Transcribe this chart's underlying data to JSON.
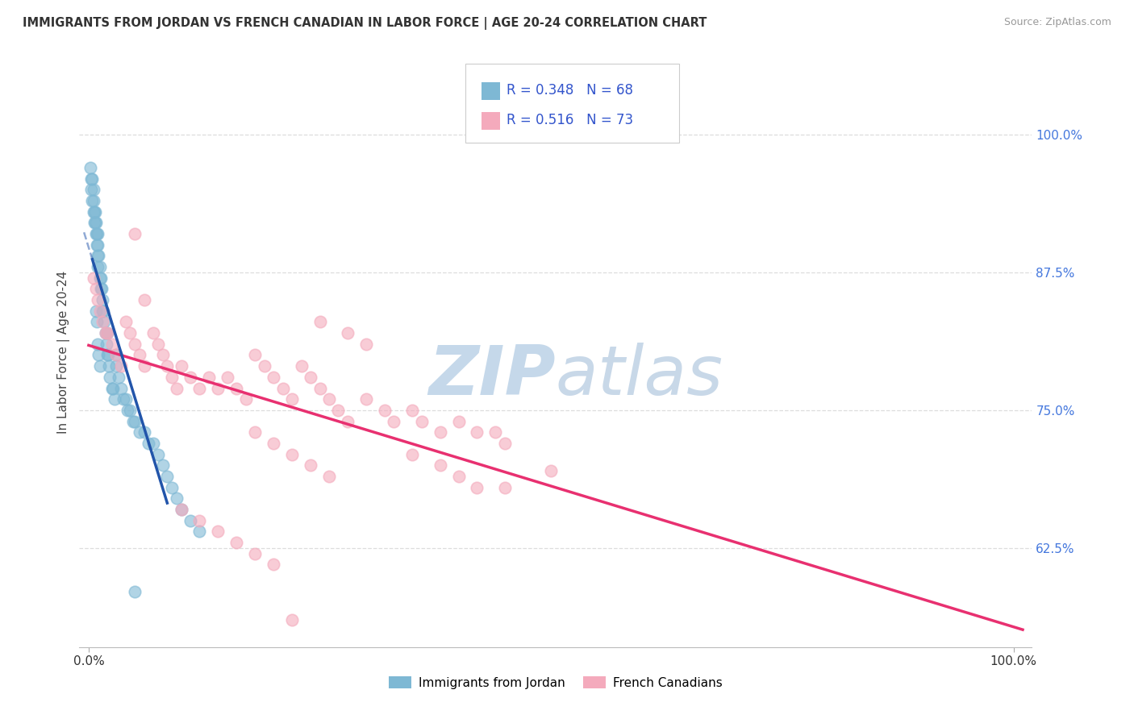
{
  "title": "IMMIGRANTS FROM JORDAN VS FRENCH CANADIAN IN LABOR FORCE | AGE 20-24 CORRELATION CHART",
  "source": "Source: ZipAtlas.com",
  "ylabel": "In Labor Force | Age 20-24",
  "xlim": [
    -0.01,
    1.02
  ],
  "ylim": [
    0.535,
    1.07
  ],
  "yticks": [
    0.625,
    0.75,
    0.875,
    1.0
  ],
  "ytick_labels": [
    "62.5%",
    "75.0%",
    "87.5%",
    "100.0%"
  ],
  "xticks": [
    0.0,
    1.0
  ],
  "xtick_labels": [
    "0.0%",
    "100.0%"
  ],
  "r_blue": "0.348",
  "n_blue": "68",
  "r_pink": "0.516",
  "n_pink": "73",
  "legend_label1": "Immigrants from Jordan",
  "legend_label2": "French Canadians",
  "blue_scatter_color": "#7EB8D4",
  "pink_scatter_color": "#F4AABC",
  "trend_blue_color": "#2255AA",
  "trend_pink_color": "#E83070",
  "watermark_zip_color": "#C5D8EA",
  "watermark_atlas_color": "#C8D8E8",
  "legend_text_color": "#3355CC",
  "ytick_color": "#4477DD",
  "title_color": "#333333",
  "source_color": "#999999",
  "grid_color": "#DDDDDD",
  "spine_color": "#CCCCCC",
  "blue_x": [
    0.002,
    0.003,
    0.003,
    0.004,
    0.004,
    0.005,
    0.005,
    0.005,
    0.006,
    0.006,
    0.007,
    0.007,
    0.008,
    0.008,
    0.009,
    0.009,
    0.01,
    0.01,
    0.01,
    0.01,
    0.011,
    0.012,
    0.012,
    0.013,
    0.013,
    0.014,
    0.015,
    0.015,
    0.016,
    0.017,
    0.018,
    0.019,
    0.02,
    0.02,
    0.021,
    0.022,
    0.023,
    0.025,
    0.026,
    0.028,
    0.03,
    0.03,
    0.032,
    0.035,
    0.038,
    0.04,
    0.042,
    0.045,
    0.048,
    0.05,
    0.055,
    0.06,
    0.065,
    0.07,
    0.075,
    0.08,
    0.085,
    0.09,
    0.095,
    0.1,
    0.11,
    0.12,
    0.008,
    0.009,
    0.01,
    0.011,
    0.012,
    0.05
  ],
  "blue_y": [
    0.97,
    0.96,
    0.95,
    0.96,
    0.94,
    0.95,
    0.94,
    0.93,
    0.93,
    0.92,
    0.93,
    0.92,
    0.92,
    0.91,
    0.91,
    0.9,
    0.91,
    0.9,
    0.89,
    0.88,
    0.89,
    0.88,
    0.87,
    0.87,
    0.86,
    0.86,
    0.85,
    0.84,
    0.84,
    0.83,
    0.82,
    0.81,
    0.82,
    0.8,
    0.8,
    0.79,
    0.78,
    0.77,
    0.77,
    0.76,
    0.8,
    0.79,
    0.78,
    0.77,
    0.76,
    0.76,
    0.75,
    0.75,
    0.74,
    0.74,
    0.73,
    0.73,
    0.72,
    0.72,
    0.71,
    0.7,
    0.69,
    0.68,
    0.67,
    0.66,
    0.65,
    0.64,
    0.84,
    0.83,
    0.81,
    0.8,
    0.79,
    0.585
  ],
  "pink_x": [
    0.005,
    0.008,
    0.01,
    0.012,
    0.015,
    0.018,
    0.02,
    0.025,
    0.03,
    0.035,
    0.04,
    0.045,
    0.05,
    0.055,
    0.06,
    0.07,
    0.075,
    0.08,
    0.085,
    0.09,
    0.095,
    0.1,
    0.11,
    0.12,
    0.13,
    0.14,
    0.15,
    0.16,
    0.17,
    0.18,
    0.19,
    0.2,
    0.21,
    0.22,
    0.23,
    0.24,
    0.25,
    0.26,
    0.27,
    0.28,
    0.3,
    0.32,
    0.33,
    0.35,
    0.36,
    0.38,
    0.4,
    0.42,
    0.44,
    0.45,
    0.05,
    0.06,
    0.25,
    0.28,
    0.3,
    0.5,
    0.18,
    0.2,
    0.22,
    0.24,
    0.26,
    0.35,
    0.38,
    0.4,
    0.42,
    0.45,
    0.1,
    0.12,
    0.14,
    0.16,
    0.18,
    0.2,
    0.22
  ],
  "pink_y": [
    0.87,
    0.86,
    0.85,
    0.84,
    0.83,
    0.82,
    0.82,
    0.81,
    0.8,
    0.79,
    0.83,
    0.82,
    0.81,
    0.8,
    0.79,
    0.82,
    0.81,
    0.8,
    0.79,
    0.78,
    0.77,
    0.79,
    0.78,
    0.77,
    0.78,
    0.77,
    0.78,
    0.77,
    0.76,
    0.8,
    0.79,
    0.78,
    0.77,
    0.76,
    0.79,
    0.78,
    0.77,
    0.76,
    0.75,
    0.74,
    0.76,
    0.75,
    0.74,
    0.75,
    0.74,
    0.73,
    0.74,
    0.73,
    0.73,
    0.72,
    0.91,
    0.85,
    0.83,
    0.82,
    0.81,
    0.695,
    0.73,
    0.72,
    0.71,
    0.7,
    0.69,
    0.71,
    0.7,
    0.69,
    0.68,
    0.68,
    0.66,
    0.65,
    0.64,
    0.63,
    0.62,
    0.61,
    0.56
  ]
}
